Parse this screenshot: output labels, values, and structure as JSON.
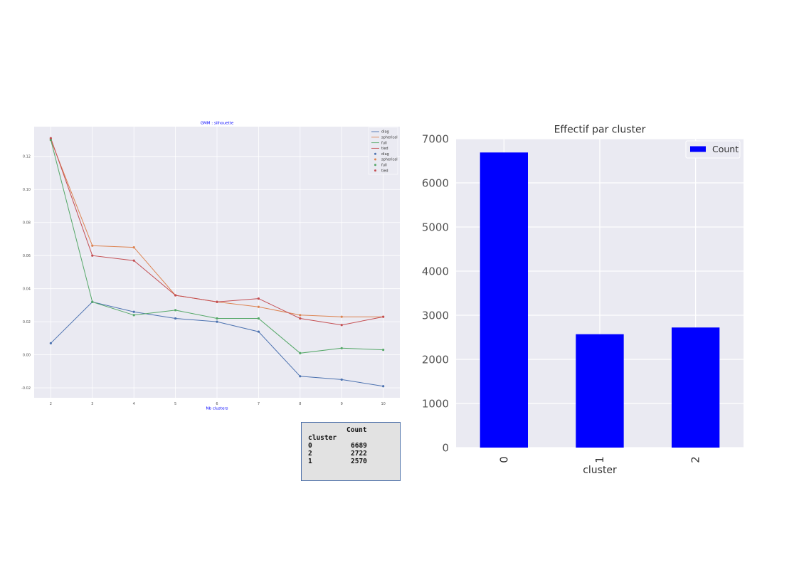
{
  "chart_data": [
    {
      "type": "line",
      "title": "GMM : silhouette",
      "xlabel": "Nb clusters",
      "ylabel": "",
      "x": [
        2,
        3,
        4,
        5,
        6,
        7,
        8,
        9,
        10
      ],
      "xlim": [
        1.6,
        10.4
      ],
      "ylim": [
        -0.026,
        0.138
      ],
      "yticks": [
        "0.12",
        "0.10",
        "0.08",
        "0.06",
        "0.04",
        "0.02",
        "0.00",
        "-0.02"
      ],
      "ytick_values": [
        0.12,
        0.1,
        0.08,
        0.06,
        0.04,
        0.02,
        0.0,
        -0.02
      ],
      "xticks": [
        "2",
        "3",
        "4",
        "5",
        "6",
        "7",
        "8",
        "9",
        "10"
      ],
      "grid": true,
      "legend_position": "top-right",
      "legend_entries": [
        "diag",
        "spherical",
        "full",
        "tied",
        "diag",
        "spherical",
        "full",
        "tied"
      ],
      "series": [
        {
          "name": "diag",
          "color": "#4c72b0",
          "values": [
            0.007,
            0.032,
            0.026,
            0.022,
            0.02,
            0.014,
            -0.013,
            -0.015,
            -0.019
          ]
        },
        {
          "name": "spherical",
          "color": "#dd8452",
          "values": [
            0.13,
            0.066,
            0.065,
            0.036,
            0.032,
            0.029,
            0.024,
            0.023,
            0.023
          ]
        },
        {
          "name": "full",
          "color": "#55a868",
          "values": [
            0.13,
            0.032,
            0.024,
            0.027,
            0.022,
            0.022,
            0.001,
            0.004,
            0.003
          ]
        },
        {
          "name": "tied",
          "color": "#c44e52",
          "values": [
            0.131,
            0.06,
            0.057,
            0.036,
            0.032,
            0.034,
            0.022,
            0.018,
            0.023
          ]
        }
      ]
    },
    {
      "type": "bar",
      "title": "Effectif par cluster",
      "xlabel": "cluster",
      "ylabel": "",
      "categories": [
        "0",
        "1",
        "2"
      ],
      "values": [
        6689,
        2570,
        2722
      ],
      "ylim": [
        0,
        7000
      ],
      "yticks": [
        "0",
        "1000",
        "2000",
        "3000",
        "4000",
        "5000",
        "6000",
        "7000"
      ],
      "ytick_values": [
        0,
        1000,
        2000,
        3000,
        4000,
        5000,
        6000,
        7000
      ],
      "grid": true,
      "legend_position": "top-right",
      "legend_entries": [
        "Count"
      ],
      "bar_color": "#0000ff"
    }
  ],
  "table": {
    "header": "Count",
    "index_name": "cluster",
    "rows": [
      {
        "index": "0",
        "count": "6689"
      },
      {
        "index": "2",
        "count": "2722"
      },
      {
        "index": "1",
        "count": "2570"
      }
    ]
  }
}
